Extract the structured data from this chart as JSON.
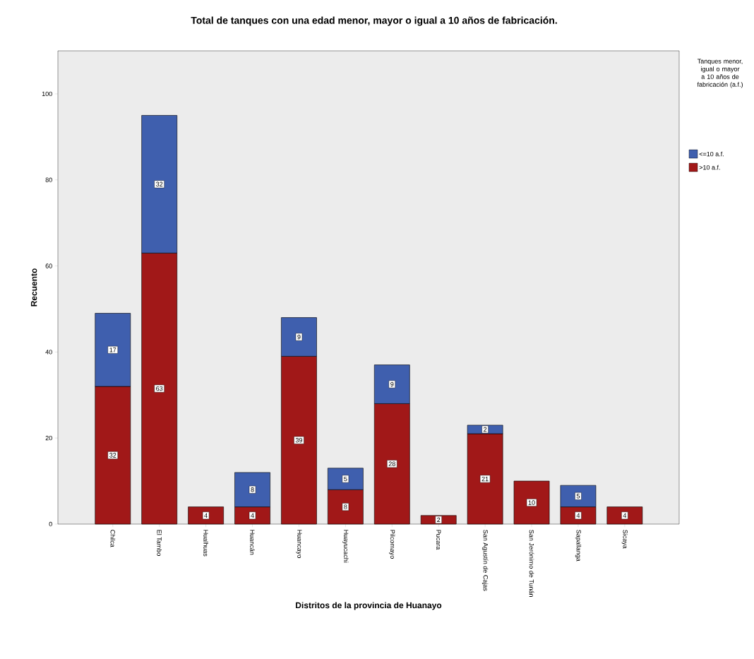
{
  "chart_data": {
    "type": "bar",
    "stacked": true,
    "title": "Total de tanques con una edad menor, mayor o igual a 10 años de fabricación.",
    "xlabel": "Distritos de la provincia de Huanayo",
    "ylabel": "Recuento",
    "legend_title": "Tanques menor, igual o mayor a 10 años de fabricación (a.f.)",
    "categories": [
      "Chilca",
      "El Tambo",
      "Hualhuas",
      "Huancán",
      "Huancayo",
      "Huayucachi",
      "Pilcomayo",
      "Pucara",
      "San Agustín de Cajas",
      "San Jerónimo de Tunán",
      "Sapallanga",
      "Sicaya"
    ],
    "series": [
      {
        "name": ">10 a.f.",
        "color": "#a11818",
        "values": [
          32,
          63,
          4,
          4,
          39,
          8,
          28,
          2,
          21,
          10,
          4,
          4
        ]
      },
      {
        "name": "<=10 a.f.",
        "color": "#3f5fae",
        "values": [
          17,
          32,
          null,
          8,
          9,
          5,
          9,
          null,
          2,
          null,
          5,
          null
        ]
      }
    ],
    "ylim": [
      0,
      110
    ],
    "yticks": [
      0,
      20,
      40,
      60,
      80,
      100
    ],
    "data_labels": true,
    "legend": "right",
    "grid": false
  }
}
